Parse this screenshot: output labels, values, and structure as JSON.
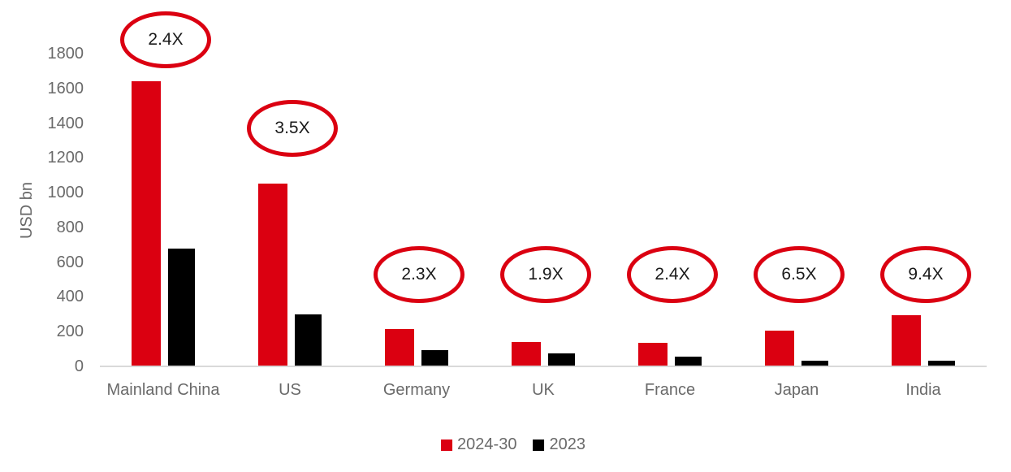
{
  "chart_data": {
    "type": "bar",
    "title": "",
    "xlabel": "",
    "ylabel": "USD bn",
    "ylim": [
      0,
      1800
    ],
    "ytick_step": 200,
    "grid": false,
    "legend_position": "bottom",
    "categories": [
      "Mainland China",
      "US",
      "Germany",
      "UK",
      "France",
      "Japan",
      "India"
    ],
    "series": [
      {
        "name": "2024-30",
        "color": "#db0011",
        "values": [
          1640,
          1050,
          215,
          140,
          135,
          205,
          295
        ]
      },
      {
        "name": "2023",
        "color": "#000000",
        "values": [
          680,
          300,
          95,
          75,
          55,
          32,
          31
        ]
      }
    ],
    "annotations": [
      {
        "category": "Mainland China",
        "label": "2.4X"
      },
      {
        "category": "US",
        "label": "3.5X"
      },
      {
        "category": "Germany",
        "label": "2.3X"
      },
      {
        "category": "UK",
        "label": "1.9X"
      },
      {
        "category": "France",
        "label": "2.4X"
      },
      {
        "category": "Japan",
        "label": "6.5X"
      },
      {
        "category": "India",
        "label": "9.4X"
      }
    ],
    "annotation_style": "red-oval"
  },
  "colors": {
    "accent_red": "#db0011",
    "bar_black": "#000000",
    "text_gray": "#6a6a6a",
    "axis_line": "#d9d9d9",
    "annotation_text": "#1a1a1a",
    "background": "#ffffff"
  }
}
